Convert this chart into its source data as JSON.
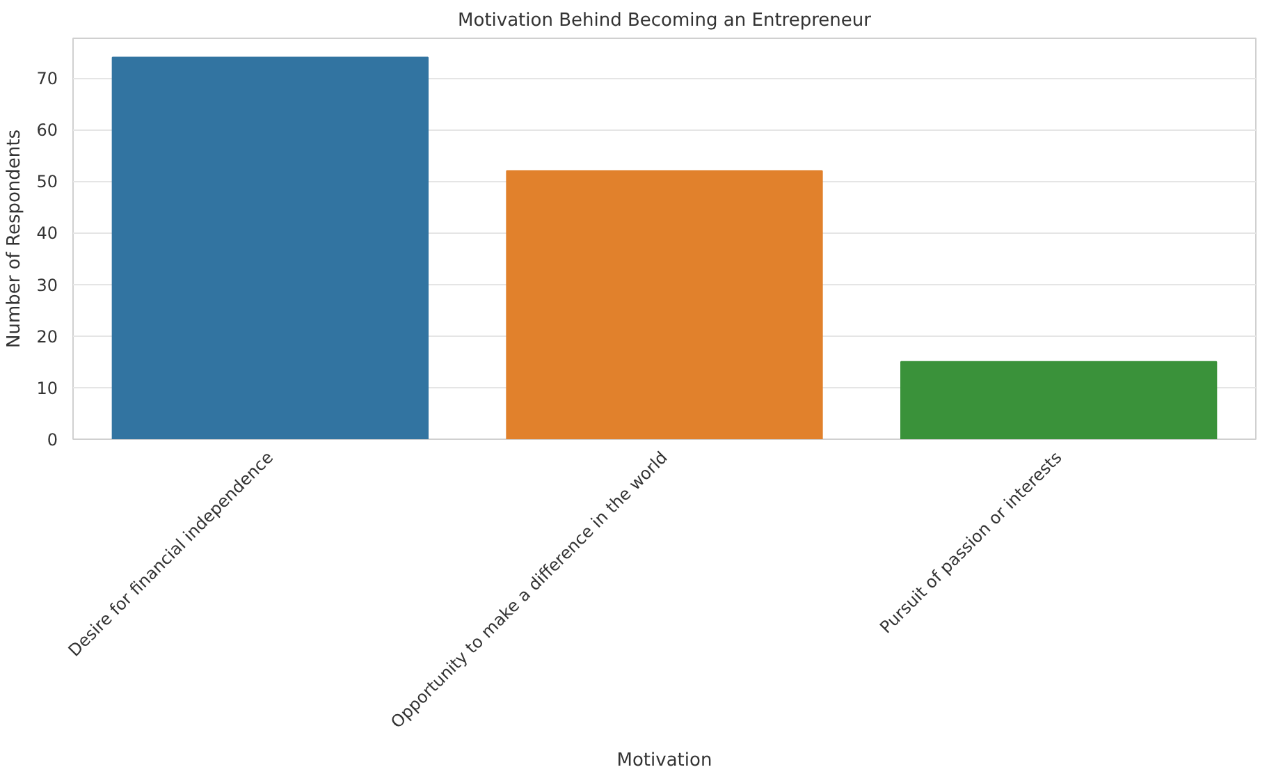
{
  "chart_data": {
    "type": "bar",
    "title": "Motivation Behind Becoming an Entrepreneur",
    "xlabel": "Motivation",
    "ylabel": "Number of Respondents",
    "categories": [
      "Desire for financial independence",
      "Opportunity to make a difference in the world",
      "Pursuit of passion or interests"
    ],
    "values": [
      74,
      52,
      15
    ],
    "colors": [
      "#3274a1",
      "#e1812c",
      "#3a923a"
    ],
    "ylim": [
      0,
      77.7
    ],
    "yticks": [
      0,
      10,
      20,
      30,
      40,
      50,
      60,
      70
    ],
    "grid": "y"
  }
}
